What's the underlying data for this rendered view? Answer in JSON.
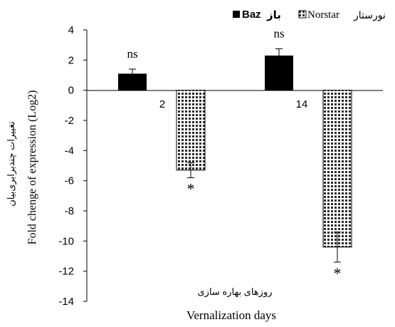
{
  "chart_data": {
    "type": "bar",
    "categories": [
      "2",
      "14"
    ],
    "series": [
      {
        "name": "Baz",
        "name_fa": "باز",
        "color": "#000000",
        "values": [
          1.1,
          2.3
        ],
        "errors": [
          0.3,
          0.45
        ],
        "labels": [
          "ns",
          "ns"
        ]
      },
      {
        "name": "Norstar",
        "name_fa": "نورستار",
        "pattern": "dotted",
        "values": [
          -5.3,
          -10.4
        ],
        "errors": [
          0.5,
          1.0
        ],
        "labels": [
          "*",
          "*"
        ]
      }
    ],
    "yticks": [
      "4",
      "2",
      "0",
      "-2",
      "-4",
      "-6",
      "-8",
      "-10",
      "-12",
      "-14"
    ],
    "ylim": [
      -14,
      4
    ],
    "ylabel": "Fold chenge of expression (Log2)",
    "ylabel_fa": "تغییرات چندبرابری‌بیان",
    "xlabel": "Vernalization  days",
    "xlabel_fa": "روزهای بهاره سازی",
    "legend_position": "top-right",
    "grid": false
  }
}
